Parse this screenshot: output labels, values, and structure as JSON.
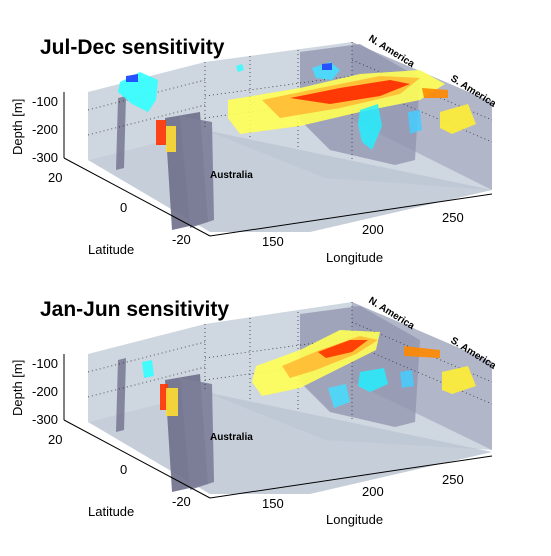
{
  "chart_data": [
    {
      "type": "volume-3d",
      "title": "Jul-Dec sensitivity",
      "zlabel": "Depth [m]",
      "xlabel": "Longitude",
      "ylabel": "Latitude",
      "depth_ticks": [
        "-100",
        "-200",
        "-300"
      ],
      "latitude_ticks": [
        "20",
        "0",
        "-20"
      ],
      "longitude_ticks": [
        "150",
        "200",
        "250"
      ],
      "region_labels": [
        "N. America",
        "S. America",
        "Australia"
      ],
      "colors": {
        "positive": [
          "#ffff66",
          "#ffcc33",
          "#ff8800",
          "#ff2200"
        ],
        "negative": [
          "#00ffff",
          "#2aa0ff",
          "#0033ff"
        ],
        "land": "#8c8fa8",
        "walls": "#b9c4d4"
      }
    },
    {
      "type": "volume-3d",
      "title": "Jan-Jun sensitivity",
      "zlabel": "Depth [m]",
      "xlabel": "Longitude",
      "ylabel": "Latitude",
      "depth_ticks": [
        "-100",
        "-200",
        "-300"
      ],
      "latitude_ticks": [
        "20",
        "0",
        "-20"
      ],
      "longitude_ticks": [
        "150",
        "200",
        "250"
      ],
      "region_labels": [
        "N. America",
        "S. America",
        "Australia"
      ],
      "colors": {
        "positive": [
          "#ffff66",
          "#ffcc33",
          "#ff8800",
          "#ff2200"
        ],
        "negative": [
          "#00ffff",
          "#2aa0ff",
          "#0033ff"
        ],
        "land": "#8c8fa8",
        "walls": "#b9c4d4"
      }
    }
  ]
}
